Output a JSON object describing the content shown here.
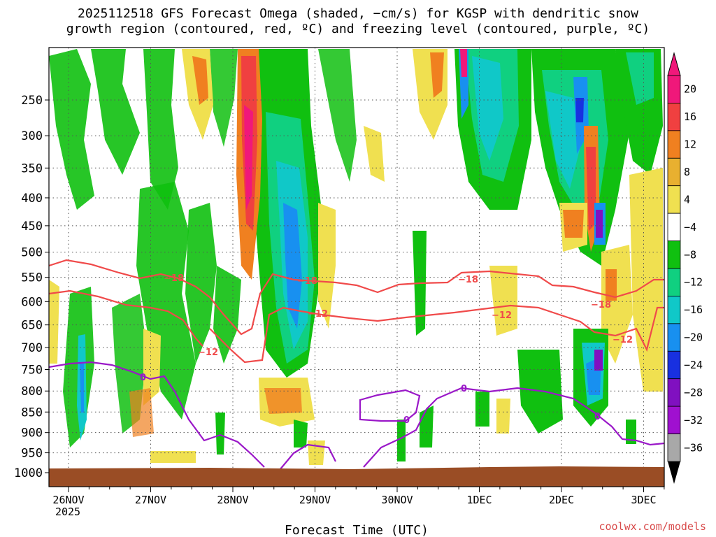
{
  "title": {
    "line1": "2025112518 GFS Forecast Omega (shaded, −cm/s) for KGSP with dendritic snow",
    "line2": "growth region (contoured, red, ºC) and freezing level (contoured, purple, ºC)"
  },
  "credit": "coolwx.com/models",
  "colors": {
    "dgz_contour": "#f04a4a",
    "freezing_contour": "#9a18c8",
    "ground": "#9a4d25",
    "grid": "#555555"
  },
  "chart_data": {
    "type": "heatmap",
    "title": "2025112518 GFS Forecast Omega (shaded, −cm/s) for KGSP with dendritic snow growth region (contoured, red, ºC) and freezing level (contoured, purple, ºC)",
    "xlabel": "Forecast Time (UTC)",
    "ylabel": "",
    "x_ticks": [
      "26NOV",
      "27NOV",
      "28NOV",
      "29NOV",
      "30NOV",
      "1DEC",
      "2DEC",
      "3DEC"
    ],
    "x_year": "2025",
    "y_ticks": [
      250,
      300,
      350,
      400,
      450,
      500,
      550,
      600,
      650,
      700,
      750,
      800,
      850,
      900,
      950,
      1000
    ],
    "y_label_strings": [
      "250",
      "300",
      "350",
      "400",
      "450",
      "500",
      "550",
      "600",
      "650",
      "700",
      "750",
      "800",
      "850",
      "900",
      "950",
      "1000"
    ],
    "ylim": [
      200,
      1000
    ],
    "grid": true,
    "colorbar": {
      "labels": [
        "20",
        "16",
        "12",
        "8",
        "4",
        "−4",
        "−8",
        "−12",
        "−16",
        "−20",
        "−24",
        "−28",
        "−32",
        "−36"
      ],
      "colors": [
        "#f0187a",
        "#f04040",
        "#f08020",
        "#e8b030",
        "#f0e050",
        "#ffffff",
        "#10c010",
        "#10d080",
        "#10c8c8",
        "#1890f0",
        "#1830e0",
        "#8010c0",
        "#a010d0",
        "#a8a8a8"
      ]
    },
    "contours": [
      {
        "series": "dendritic_snow_growth",
        "labels": [
          "−18",
          "−12",
          "−18",
          "−12",
          "−18",
          "−12",
          "−18",
          "−12"
        ]
      },
      {
        "series": "freezing_level",
        "labels": [
          "0",
          "0",
          "0",
          "0"
        ]
      }
    ]
  }
}
